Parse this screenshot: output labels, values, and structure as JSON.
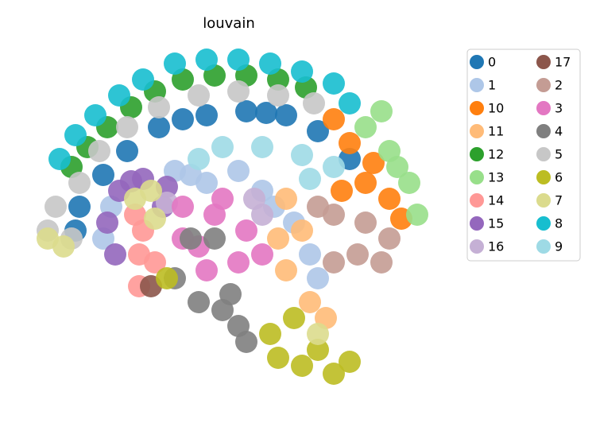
{
  "chart_data": {
    "type": "scatter",
    "title": "louvain",
    "xlim": [
      0,
      750
    ],
    "ylim": [
      528,
      0
    ],
    "series": [
      {
        "name": "0",
        "color": "#1f77b4",
        "x": [
          260,
          310,
          360,
          400,
          440,
          200,
          160,
          130,
          100,
          95,
          230,
          335
        ],
        "y": [
          145,
          140,
          145,
          165,
          200,
          160,
          190,
          220,
          260,
          290,
          150,
          142
        ]
      },
      {
        "name": "1",
        "color": "#aec7e8",
        "x": [
          220,
          260,
          300,
          330,
          370,
          390,
          400,
          140,
          130,
          345,
          240
        ],
        "y": [
          215,
          230,
          215,
          240,
          280,
          320,
          350,
          260,
          300,
          260,
          220
        ]
      },
      {
        "name": "10",
        "color": "#ff7f0e",
        "x": [
          420,
          440,
          460,
          490,
          430,
          470,
          505
        ],
        "y": [
          150,
          180,
          230,
          250,
          240,
          205,
          275
        ]
      },
      {
        "name": "11",
        "color": "#ffbb78",
        "x": [
          360,
          380,
          360,
          390,
          410,
          350
        ],
        "y": [
          250,
          290,
          340,
          380,
          400,
          300
        ]
      },
      {
        "name": "12",
        "color": "#2ca02c",
        "x": [
          230,
          270,
          310,
          350,
          385,
          195,
          165,
          135,
          110,
          90
        ],
        "y": [
          100,
          95,
          95,
          100,
          110,
          115,
          135,
          160,
          185,
          210
        ]
      },
      {
        "name": "13",
        "color": "#98df8a",
        "x": [
          460,
          490,
          515,
          525,
          480,
          500
        ],
        "y": [
          160,
          190,
          230,
          270,
          140,
          210
        ]
      },
      {
        "name": "14",
        "color": "#ff9896",
        "x": [
          180,
          175,
          175,
          195,
          170
        ],
        "y": [
          290,
          320,
          360,
          330,
          270
        ]
      },
      {
        "name": "15",
        "color": "#9467bd",
        "x": [
          150,
          135,
          145,
          180,
          210,
          205,
          165
        ],
        "y": [
          240,
          280,
          320,
          225,
          235,
          260,
          228
        ]
      },
      {
        "name": "16",
        "color": "#c5b0d5",
        "x": [
          320,
          330,
          210
        ],
        "y": [
          250,
          270,
          255
        ]
      },
      {
        "name": "17",
        "color": "#8c564b",
        "x": [
          190
        ],
        "y": [
          360
        ]
      },
      {
        "name": "2",
        "color": "#c49c94",
        "x": [
          420,
          460,
          490,
          450,
          420,
          400,
          480
        ],
        "y": [
          270,
          280,
          300,
          320,
          330,
          260,
          330
        ]
      },
      {
        "name": "3",
        "color": "#e377c2",
        "x": [
          230,
          270,
          310,
          250,
          300,
          260,
          330,
          230,
          280
        ],
        "y": [
          260,
          270,
          290,
          310,
          330,
          340,
          320,
          300,
          250
        ]
      },
      {
        "name": "4",
        "color": "#7f7f7f",
        "x": [
          220,
          250,
          280,
          300,
          240,
          290,
          310,
          270
        ],
        "y": [
          350,
          380,
          390,
          410,
          300,
          370,
          430,
          300
        ]
      },
      {
        "name": "5",
        "color": "#c7c7c7",
        "x": [
          250,
          300,
          350,
          200,
          160,
          125,
          100,
          70,
          60,
          90,
          395
        ],
        "y": [
          120,
          115,
          120,
          135,
          160,
          190,
          230,
          260,
          290,
          300,
          130
        ]
      },
      {
        "name": "6",
        "color": "#bcbd22",
        "x": [
          340,
          370,
          400,
          420,
          380,
          350,
          210,
          440
        ],
        "y": [
          420,
          400,
          440,
          470,
          460,
          450,
          350,
          455
        ]
      },
      {
        "name": "7",
        "color": "#dbdb8d",
        "x": [
          170,
          190,
          60,
          80,
          400,
          195
        ],
        "y": [
          250,
          240,
          300,
          310,
          420,
          275
        ]
      },
      {
        "name": "8",
        "color": "#17becf",
        "x": [
          220,
          260,
          300,
          340,
          380,
          420,
          180,
          150,
          120,
          95,
          75,
          440
        ],
        "y": [
          80,
          75,
          75,
          80,
          90,
          105,
          100,
          120,
          145,
          170,
          200,
          130
        ]
      },
      {
        "name": "9",
        "color": "#9edae5",
        "x": [
          280,
          330,
          380,
          420,
          250,
          390
        ],
        "y": [
          185,
          185,
          195,
          210,
          200,
          225
        ]
      }
    ]
  }
}
